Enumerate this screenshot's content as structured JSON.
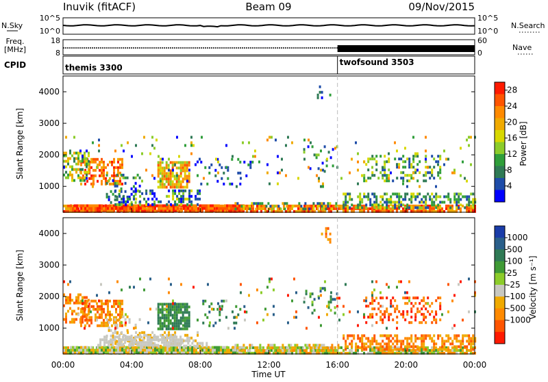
{
  "header": {
    "station": "Inuvik (fitACF)",
    "beam": "Beam 09",
    "date": "09/Nov/2015"
  },
  "noise_panel": {
    "left_label": "N.Sky",
    "left_ticks": [
      "10^5",
      "10^0"
    ],
    "right_ticks": [
      "10^5",
      "10^0"
    ],
    "right_label": "N.Search"
  },
  "freq_panel": {
    "left_label_1": "Freq.",
    "left_label_2": "[MHz]",
    "left_ticks": [
      "18",
      "8"
    ],
    "right_ticks": [
      "60",
      "0"
    ],
    "right_label": "Nave"
  },
  "cpid_panel": {
    "label": "CPID",
    "modes": [
      {
        "name": "themis 3300",
        "start_hour": 0
      },
      {
        "name": "twofsound 3503",
        "start_hour": 16
      }
    ]
  },
  "chart_data": [
    {
      "type": "heatmap",
      "parameter": "power",
      "xlabel": "",
      "ylabel": "Slant Range [km]",
      "x_range_hours": [
        0,
        24
      ],
      "y_range_km": [
        180,
        4500
      ],
      "y_ticks": [
        "1000",
        "2000",
        "3000",
        "4000"
      ],
      "colorbar_label": "Power [dB]",
      "colorbar_ticks": [
        "28",
        "24",
        "20",
        "16",
        "12",
        "8",
        "4"
      ],
      "colorbar_colors": [
        "#ff1a00",
        "#ff5500",
        "#ff8a00",
        "#f0aa00",
        "#d8d800",
        "#8ccc2a",
        "#2f9e3a",
        "#2f7a55",
        "#1e4ca8",
        "#0000ff"
      ],
      "colorbar_range": [
        0,
        30
      ]
    },
    {
      "type": "heatmap",
      "parameter": "velocity",
      "xlabel": "Time UT",
      "ylabel": "Slant Range [km]",
      "x_range_hours": [
        0,
        24
      ],
      "x_ticks": [
        "00:00",
        "04:00",
        "08:00",
        "12:00",
        "16:00",
        "20:00",
        "00:00"
      ],
      "y_range_km": [
        180,
        4500
      ],
      "y_ticks": [
        "1000",
        "2000",
        "3000",
        "4000"
      ],
      "colorbar_label": "Velocity [m s⁻¹]",
      "colorbar_ticks": [
        "1000",
        "500",
        "100",
        "25",
        "-25",
        "-100",
        "-500",
        "-1000"
      ],
      "colorbar_colors": [
        "#1a3ca8",
        "#2a5f8a",
        "#2f7a55",
        "#3f9a35",
        "#8ccc2a",
        "#c8c8c0",
        "#f0aa00",
        "#ff8a00",
        "#ff5500",
        "#ff1a00"
      ],
      "ground_scatter_color": "#c8c8c0"
    }
  ]
}
